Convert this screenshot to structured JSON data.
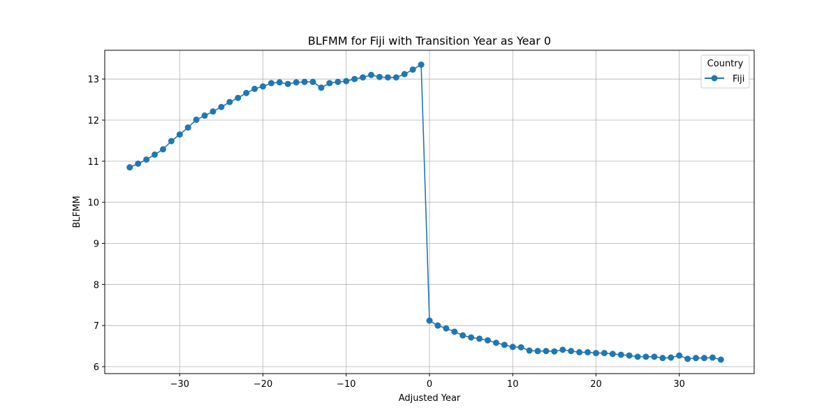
{
  "chart_data": {
    "type": "line",
    "title": "BLFMM for Fiji with Transition Year as Year 0",
    "xlabel": "Adjusted Year",
    "ylabel": "BLFMM",
    "xlim": [
      -39,
      39
    ],
    "ylim": [
      5.83,
      13.7
    ],
    "xticks": [
      -30,
      -20,
      -10,
      0,
      10,
      20,
      30
    ],
    "xtick_labels": [
      "−30",
      "−20",
      "−10",
      "0",
      "10",
      "20",
      "30"
    ],
    "yticks": [
      6,
      7,
      8,
      9,
      10,
      11,
      12,
      13
    ],
    "ytick_labels": [
      "6",
      "7",
      "8",
      "9",
      "10",
      "11",
      "12",
      "13"
    ],
    "grid": true,
    "legend": {
      "title": "Country",
      "position": "top-right"
    },
    "series": [
      {
        "name": "Fiji",
        "color": "#1f77b4",
        "marker": "circle",
        "x": [
          -36,
          -35,
          -34,
          -33,
          -32,
          -31,
          -30,
          -29,
          -28,
          -27,
          -26,
          -25,
          -24,
          -23,
          -22,
          -21,
          -20,
          -19,
          -18,
          -17,
          -16,
          -15,
          -14,
          -13,
          -12,
          -11,
          -10,
          -9,
          -8,
          -7,
          -6,
          -5,
          -4,
          -3,
          -2,
          -1,
          0,
          1,
          2,
          3,
          4,
          5,
          6,
          7,
          8,
          9,
          10,
          11,
          12,
          13,
          14,
          15,
          16,
          17,
          18,
          19,
          20,
          21,
          22,
          23,
          24,
          25,
          26,
          27,
          28,
          29,
          30,
          31,
          32,
          33,
          34,
          35
        ],
        "y": [
          10.85,
          10.94,
          11.04,
          11.16,
          11.29,
          11.49,
          11.65,
          11.82,
          12.01,
          12.11,
          12.21,
          12.32,
          12.44,
          12.54,
          12.66,
          12.76,
          12.82,
          12.9,
          12.92,
          12.88,
          12.92,
          12.93,
          12.93,
          12.79,
          12.9,
          12.93,
          12.95,
          13.0,
          13.04,
          13.1,
          13.05,
          13.04,
          13.04,
          13.12,
          13.23,
          13.35,
          7.12,
          7.0,
          6.93,
          6.85,
          6.76,
          6.71,
          6.68,
          6.64,
          6.58,
          6.53,
          6.48,
          6.47,
          6.39,
          6.38,
          6.38,
          6.37,
          6.41,
          6.38,
          6.35,
          6.35,
          6.33,
          6.33,
          6.31,
          6.29,
          6.27,
          6.24,
          6.24,
          6.24,
          6.21,
          6.22,
          6.27,
          6.19,
          6.21,
          6.21,
          6.22,
          6.17
        ]
      }
    ]
  }
}
